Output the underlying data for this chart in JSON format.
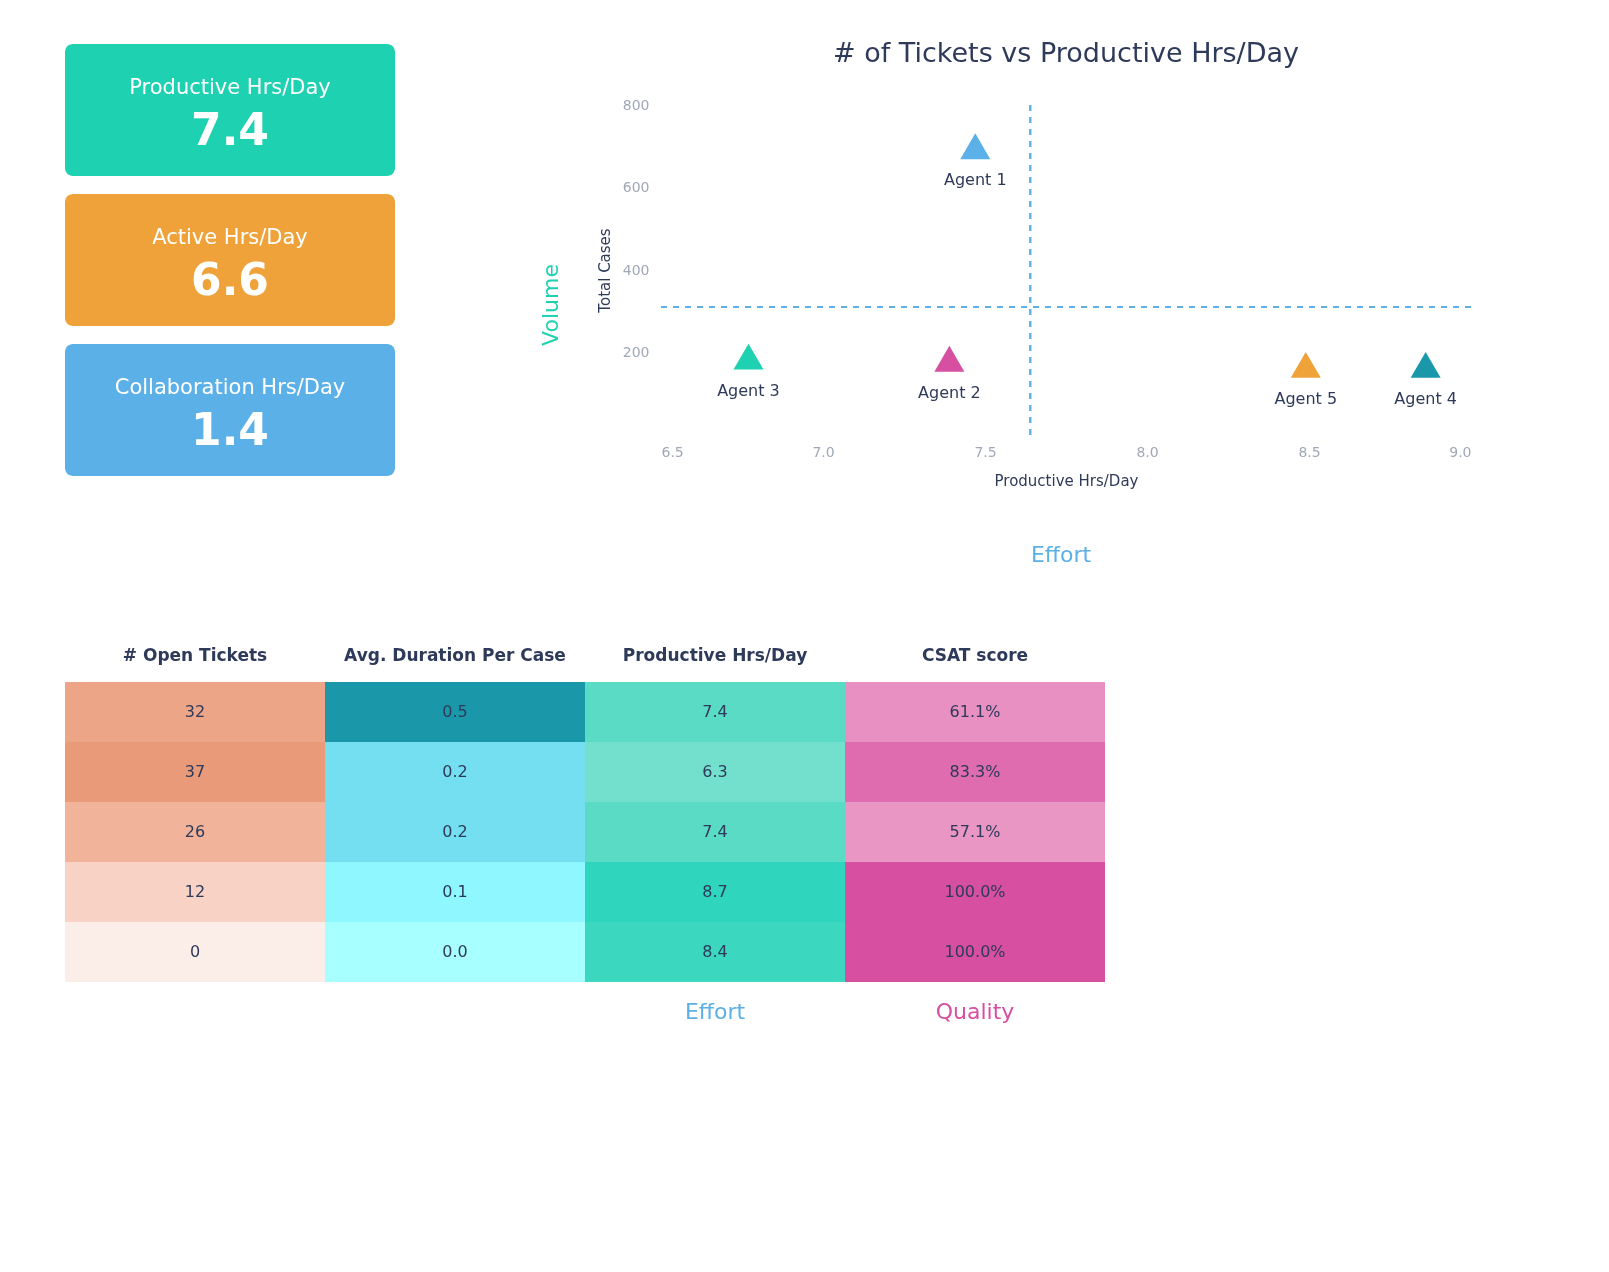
{
  "chart_data": [
    {
      "type": "other",
      "annotations": [
        "Productive Hrs/Day",
        "7.4",
        "Active Hrs/Day",
        "6.6",
        "Collaboration Hrs/Day",
        "1.4"
      ],
      "colors": [
        "#1dd1b1",
        "#f0a23a",
        "#5bb0e8"
      ]
    },
    {
      "type": "scatter",
      "title": "# of Tickets vs Productive Hrs/Day",
      "xlabel": "Productive Hrs/Day",
      "ylabel": "Total Cases",
      "marker": "triangle",
      "xlim": [
        6.5,
        9.0
      ],
      "xticks": [
        6.5,
        {
          "value": 7,
          "label": "7.0"
        },
        7.5,
        {
          "value": 8,
          "label": "8.0"
        },
        8.5,
        {
          "value": 9,
          "label": "9.0"
        }
      ],
      "ylim": [
        0,
        800
      ],
      "yticks": [
        200,
        400,
        600,
        800
      ],
      "grid": false,
      "legend": false,
      "series": [
        {
          "name": "Agent 1",
          "color": "#5bb0e8",
          "x": [
            7.47
          ],
          "values": [
            700
          ]
        },
        {
          "name": "Agent 2",
          "color": "#d64fa0",
          "x": [
            7.39
          ],
          "values": [
            185
          ]
        },
        {
          "name": "Agent 3",
          "color": "#1dd1b1",
          "x": [
            6.77
          ],
          "values": [
            190
          ]
        },
        {
          "name": "Agent 4",
          "color": "#1a98aa",
          "x": [
            8.86
          ],
          "values": [
            170
          ]
        },
        {
          "name": "Agent 5",
          "color": "#f0a23a",
          "x": [
            8.49
          ],
          "values": [
            170
          ]
        }
      ],
      "ref_lines": [
        {
          "axis": "x",
          "value": 7.64,
          "line_style": "dashed",
          "color": "#5bb0e8"
        },
        {
          "axis": "y",
          "value": 310,
          "line_style": "dashed",
          "color": "#5bb0e8"
        }
      ],
      "annotations": [
        "Volume",
        "Effort"
      ]
    },
    {
      "type": "heatmap",
      "categories": [
        "# Open Tickets",
        "Avg. Duration Per Case",
        "Productive Hrs/Day",
        "CSAT score"
      ],
      "y_categories": [
        null,
        null,
        null,
        null,
        null
      ],
      "cells": [
        [
          32,
          0.5,
          7.4,
          61.1
        ],
        [
          37,
          0.2,
          6.3,
          83.3
        ],
        [
          26,
          0.2,
          7.4,
          57.1
        ],
        [
          12,
          0.1,
          8.7,
          100.0
        ],
        [
          0,
          0.0,
          8.4,
          100.0
        ]
      ],
      "cell_labels": [
        [
          "32",
          "0.5",
          "7.4",
          "61.1%"
        ],
        [
          "37",
          "0.2",
          "6.3",
          "83.3%"
        ],
        [
          "26",
          "0.2",
          "7.4",
          "57.1%"
        ],
        [
          "12",
          "0.1",
          "8.7",
          "100.0%"
        ],
        [
          "0",
          "0.0",
          "8.4",
          "100.0%"
        ]
      ],
      "annotations": [
        "Effort",
        "Quality"
      ]
    }
  ]
}
